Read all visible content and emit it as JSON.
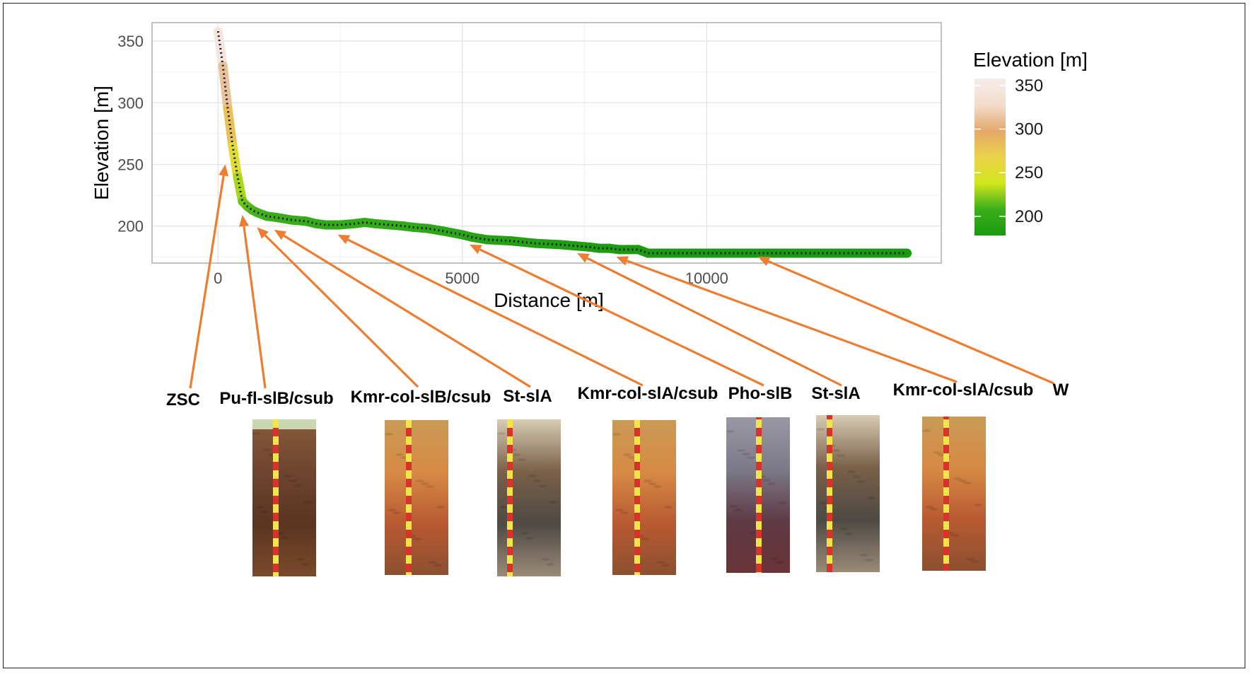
{
  "chart_data": {
    "type": "line",
    "title": "",
    "xlabel": "Distance [m]",
    "ylabel": "Elevation [m]",
    "xlim": [
      -1350,
      14800
    ],
    "ylim": [
      170,
      365
    ],
    "x_ticks": [
      0,
      5000,
      10000
    ],
    "x_tick_labels": [
      "0",
      "5000",
      "10000"
    ],
    "y_ticks": [
      200,
      250,
      300,
      350
    ],
    "y_tick_labels": [
      "200",
      "250",
      "300",
      "350"
    ],
    "grid": true,
    "legend": {
      "title": "Elevation [m]",
      "placement": "right",
      "ticks": [
        "200",
        "250",
        "300",
        "350"
      ],
      "range": [
        178,
        358
      ],
      "colors": [
        "#1a9a10",
        "#3aae1a",
        "#d2e61c",
        "#ecd24a",
        "#e3a86a",
        "#f2ddcc",
        "#f7ecec"
      ]
    },
    "series": [
      {
        "x": [
          0,
          100,
          200,
          300,
          400,
          500,
          600,
          700,
          800,
          1000,
          1200,
          1500,
          1800,
          2000,
          2200,
          2500,
          2800,
          3000,
          3200,
          3500,
          3800,
          4000,
          4300,
          4600,
          5000,
          5200,
          5500,
          6000,
          6500,
          7000,
          7300,
          7600,
          7800,
          8000,
          8200,
          8400,
          8600,
          8800,
          9000,
          9500,
          10000,
          11000,
          12000,
          13000,
          14100
        ],
        "y": [
          358,
          330,
          295,
          265,
          240,
          220,
          216,
          213,
          211,
          208,
          207,
          205,
          204,
          202,
          201,
          201,
          202,
          203,
          202,
          201,
          200,
          199,
          198,
          196,
          193,
          191,
          189,
          188,
          186,
          185,
          184,
          183,
          182,
          182,
          181,
          181,
          181,
          178,
          178,
          178,
          178,
          178,
          178,
          178,
          178
        ]
      }
    ],
    "annotations": [
      {
        "label": "ZSC",
        "x": 150,
        "y": 250
      },
      {
        "label": "Pu-fl-slB/csub",
        "x": 500,
        "y": 209
      },
      {
        "label": "Kmr-col-slB/csub",
        "x": 800,
        "y": 199
      },
      {
        "label": "St-slA",
        "x": 1150,
        "y": 197
      },
      {
        "label": "Kmr-col-slA/csub",
        "x": 2450,
        "y": 193
      },
      {
        "label": "Pho-slB",
        "x": 5150,
        "y": 185
      },
      {
        "label": "St-slA",
        "x": 7350,
        "y": 178
      },
      {
        "label": "Kmr-col-slA/csub",
        "x": 8150,
        "y": 175
      },
      {
        "label": "W",
        "x": 11050,
        "y": 175
      }
    ]
  },
  "profile_photos": [
    {
      "name": "Pu-fl-slB/csub",
      "colors": [
        "#8a5a3c",
        "#6e4530",
        "#5a3522",
        "#7a4a2a"
      ]
    },
    {
      "name": "Kmr-col-slB/csub",
      "colors": [
        "#c99a55",
        "#d78a45",
        "#b85a32",
        "#8c5030"
      ]
    },
    {
      "name": "St-slA",
      "colors": [
        "#d8cbb4",
        "#7a6048",
        "#4e4a44",
        "#9a8a76"
      ]
    },
    {
      "name": "Kmr-col-slA/csub",
      "colors": [
        "#c99a55",
        "#d78a45",
        "#b85a32",
        "#8c5030"
      ]
    },
    {
      "name": "Pho-slB",
      "colors": [
        "#9a98a4",
        "#7c7a88",
        "#5e3a44",
        "#6a3438"
      ]
    },
    {
      "name": "St-slA",
      "colors": [
        "#d8cbb4",
        "#7a6048",
        "#4e4a44",
        "#9a8a76"
      ]
    },
    {
      "name": "Kmr-col-slA/csub",
      "colors": [
        "#c99a55",
        "#d78a45",
        "#b85a32",
        "#8c5030"
      ]
    }
  ],
  "colors": {
    "arrow": "#ed7d31",
    "grid": "#e5e5e5",
    "panel_border": "#b3b3b3",
    "dotted_line": "#1a1a3a",
    "ruler_red": "#d8332a",
    "ruler_yellow": "#f2e54a"
  }
}
